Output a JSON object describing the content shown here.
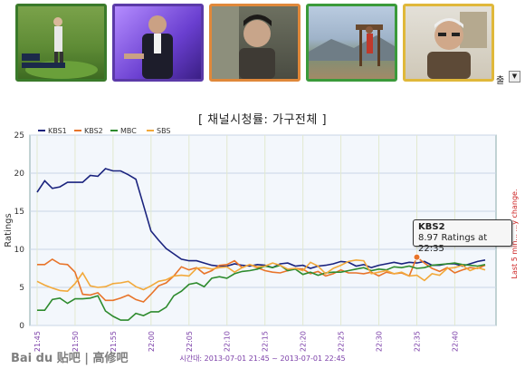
{
  "thumbnails": [
    {
      "border": "#3a7a2a"
    },
    {
      "border": "#5b3aa8"
    },
    {
      "border": "#e0883a"
    },
    {
      "border": "#3a9a3a"
    },
    {
      "border": "#e0b83a"
    }
  ],
  "tab_caption": "출",
  "chart_title": "[ 채널시청률: 가구전체 ]",
  "x_footer": "시간대: 2013-07-01 21:45 ~ 2013-07-01 22:45",
  "side_note": "Last 5 min... ...y change.",
  "tooltip": {
    "title": "KBS2",
    "body": "8.97 Ratings at 22:35"
  },
  "watermark": "Bai du 贴吧 | 高修吧",
  "chart_data": {
    "type": "line",
    "ylabel": "Ratings",
    "ylim": [
      0,
      25
    ],
    "yticks": [
      0,
      5,
      10,
      15,
      20,
      25
    ],
    "x_range": [
      "21:45",
      "22:44"
    ],
    "xticks": [
      "21:45",
      "21:50",
      "21:55",
      "22:00",
      "22:05",
      "22:10",
      "22:15",
      "22:20",
      "22:25",
      "22:30",
      "22:35",
      "22:40"
    ],
    "grid": true,
    "legend": "top-left",
    "series": [
      {
        "name": "KBS1",
        "color": "#1a237e",
        "values": [
          17.5,
          19.0,
          18.0,
          18.2,
          18.8,
          18.8,
          18.8,
          19.7,
          19.6,
          20.6,
          20.3,
          20.3,
          19.8,
          19.2,
          15.8,
          12.4,
          11.2,
          10.1,
          9.4,
          8.7,
          8.5,
          8.5,
          8.2,
          7.9,
          7.8,
          7.8,
          8.1,
          7.9,
          7.8,
          8.0,
          7.9,
          7.6,
          8.1,
          8.2,
          7.8,
          7.9,
          7.5,
          7.8,
          7.9,
          8.1,
          8.4,
          8.3,
          7.8,
          8.0,
          7.6,
          7.9,
          8.1,
          8.3,
          8.1,
          8.3,
          8.2,
          8.4,
          7.9,
          7.9,
          8.1,
          8.1,
          7.8,
          8.1,
          8.4,
          8.6
        ]
      },
      {
        "name": "KBS2",
        "color": "#e8742a",
        "values": [
          8.0,
          8.0,
          8.7,
          8.1,
          8.0,
          7.0,
          4.1,
          4.0,
          4.3,
          3.3,
          3.3,
          3.6,
          4.0,
          3.4,
          3.1,
          4.1,
          5.2,
          5.6,
          6.5,
          7.7,
          7.3,
          7.6,
          6.8,
          7.2,
          7.9,
          8.0,
          8.5,
          7.6,
          8.0,
          7.6,
          7.2,
          7.0,
          6.9,
          7.2,
          7.5,
          7.4,
          6.8,
          7.1,
          6.5,
          6.8,
          7.3,
          6.9,
          6.9,
          6.8,
          7.0,
          6.5,
          7.0,
          6.8,
          6.9,
          6.5,
          8.97,
          8.2,
          7.5,
          7.1,
          7.6,
          6.9,
          7.3,
          7.6,
          7.5,
          7.9
        ]
      },
      {
        "name": "MBC",
        "color": "#2e8b2e",
        "values": [
          2.0,
          2.0,
          3.4,
          3.6,
          2.9,
          3.5,
          3.5,
          3.6,
          3.9,
          1.9,
          1.2,
          0.7,
          0.7,
          1.6,
          1.3,
          1.8,
          1.8,
          2.4,
          3.9,
          4.5,
          5.4,
          5.6,
          5.1,
          6.2,
          6.4,
          6.2,
          6.8,
          7.1,
          7.2,
          7.4,
          7.8,
          7.6,
          7.9,
          7.2,
          7.4,
          6.7,
          7.0,
          6.6,
          6.9,
          7.0,
          7.0,
          7.2,
          7.4,
          7.6,
          7.2,
          7.4,
          7.3,
          7.7,
          7.6,
          7.8,
          7.5,
          7.6,
          7.9,
          8.0,
          8.1,
          8.2,
          8.0,
          7.9,
          7.8,
          8.0
        ]
      },
      {
        "name": "SBS",
        "color": "#f2a93b",
        "values": [
          5.8,
          5.3,
          4.9,
          4.6,
          4.5,
          5.5,
          6.9,
          5.2,
          5.0,
          5.1,
          5.5,
          5.6,
          5.8,
          5.1,
          4.7,
          5.2,
          5.8,
          6.0,
          6.5,
          6.6,
          6.5,
          7.5,
          7.6,
          7.4,
          7.6,
          7.7,
          7.0,
          7.6,
          8.0,
          7.7,
          7.8,
          8.2,
          7.9,
          7.4,
          7.5,
          7.2,
          8.3,
          7.8,
          6.8,
          7.5,
          7.9,
          8.4,
          8.6,
          8.5,
          6.8,
          7.0,
          7.2,
          6.8,
          7.0,
          6.5,
          6.6,
          5.9,
          6.8,
          6.6,
          7.5,
          7.6,
          7.9,
          7.2,
          7.6,
          7.3
        ]
      }
    ]
  }
}
